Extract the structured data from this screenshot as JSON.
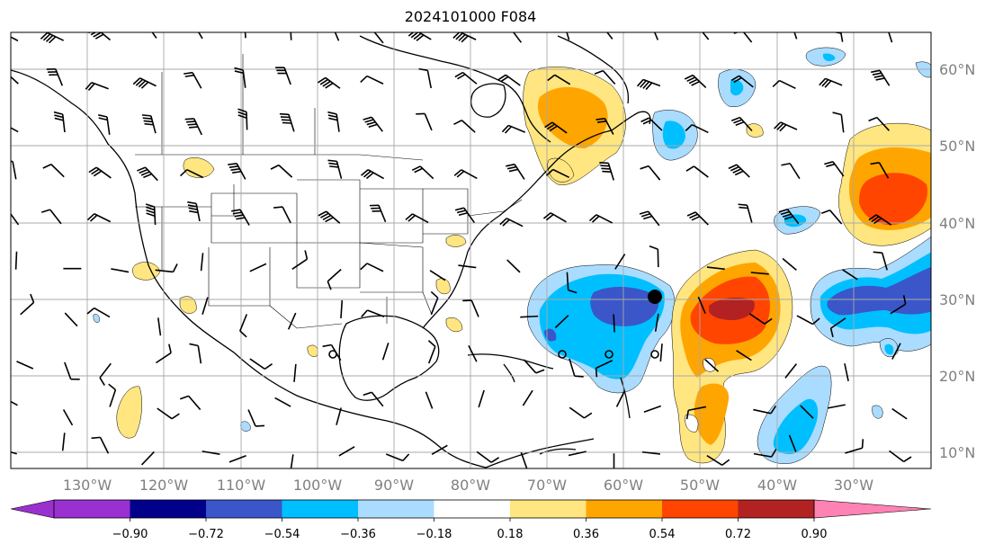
{
  "title": "2024101000 F084",
  "longitude_labels": [
    "130°W",
    "120°W",
    "110°W",
    "100°W",
    "90°W",
    "80°W",
    "70°W",
    "60°W",
    "50°W",
    "40°W",
    "30°W"
  ],
  "latitude_labels": [
    "60°N",
    "50°N",
    "40°N",
    "30°N",
    "20°N",
    "10°N"
  ],
  "colorbar": {
    "colors": [
      "#9b30d0",
      "#00008b",
      "#3a56c8",
      "#00bfff",
      "#aadcff",
      "#ffffff",
      "#ffe680",
      "#ffa500",
      "#ff4500",
      "#b22222",
      "#ff82b4"
    ],
    "tick_labels": [
      "−0.90",
      "−0.72",
      "−0.54",
      "−0.36",
      "−0.18",
      "0.18",
      "0.36",
      "0.54",
      "0.72",
      "0.90"
    ]
  },
  "colors": {
    "grid": "#a9a9a9",
    "coast": "#000000",
    "axis_text": "#808080"
  }
}
